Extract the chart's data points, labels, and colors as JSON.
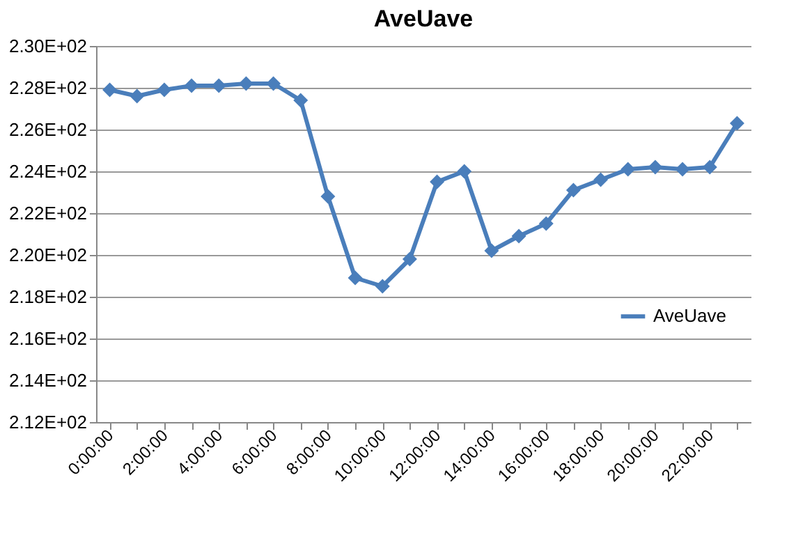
{
  "chart_data": {
    "type": "line",
    "title": "AveUave",
    "categories": [
      "0:00:00",
      null,
      "2:00:00",
      null,
      "4:00:00",
      null,
      "6:00:00",
      null,
      "8:00:00",
      null,
      "10:00:00",
      null,
      "12:00:00",
      null,
      "14:00:00",
      null,
      "16:00:00",
      null,
      "18:00:00",
      null,
      "20:00:00",
      null,
      "22:00:00",
      null
    ],
    "series": [
      {
        "name": "AveUave",
        "color": "#4a7ebb",
        "values": [
          227.9,
          227.6,
          227.9,
          228.1,
          228.1,
          228.2,
          228.2,
          227.4,
          222.8,
          218.9,
          218.5,
          219.8,
          223.5,
          224.0,
          220.2,
          220.9,
          221.5,
          223.1,
          223.6,
          224.1,
          224.2,
          224.1,
          224.2,
          226.3
        ]
      }
    ],
    "ylim": [
      212,
      230
    ],
    "yticks": [
      {
        "value": 212,
        "label": "2.12E+02"
      },
      {
        "value": 214,
        "label": "2.14E+02"
      },
      {
        "value": 216,
        "label": "2.16E+02"
      },
      {
        "value": 218,
        "label": "2.18E+02"
      },
      {
        "value": 220,
        "label": "2.20E+02"
      },
      {
        "value": 222,
        "label": "2.22E+02"
      },
      {
        "value": 224,
        "label": "2.24E+02"
      },
      {
        "value": 226,
        "label": "2.26E+02"
      },
      {
        "value": 228,
        "label": "2.28E+02"
      },
      {
        "value": 230,
        "label": "2.30E+02"
      }
    ],
    "grid": "y",
    "legend": "right",
    "marker": "diamond",
    "line_style": "solid"
  }
}
